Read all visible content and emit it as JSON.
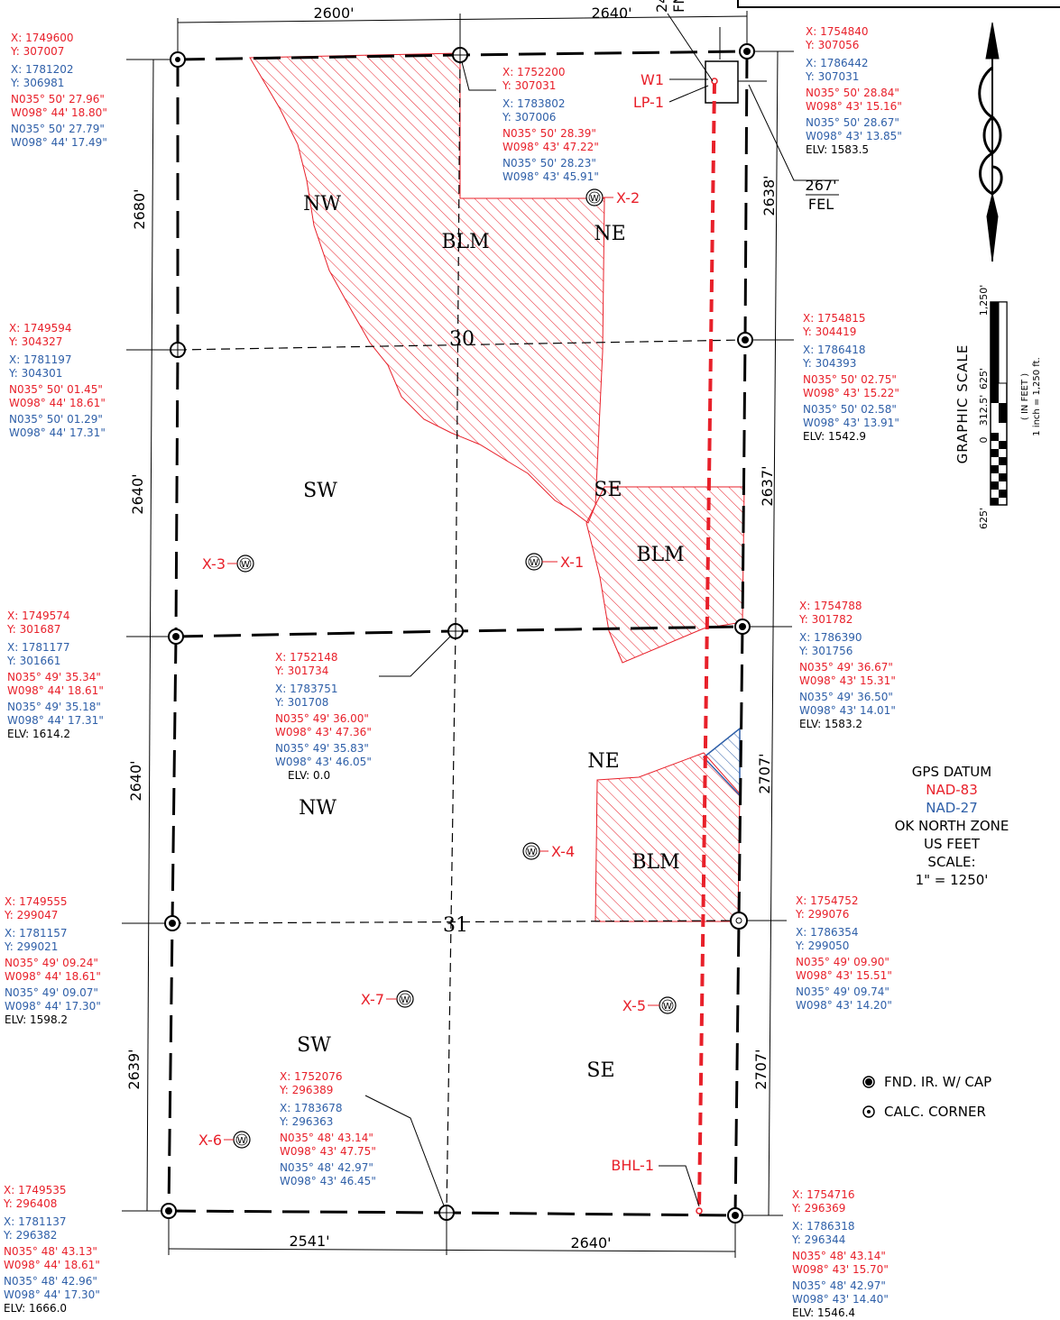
{
  "corners": {
    "nw_top": {
      "nad83_x": "X: 1749600",
      "nad83_y": "Y: 307007",
      "nad27_x": "X: 1781202",
      "nad27_y": "Y: 306981",
      "lat83": "N035° 50' 27.96\"",
      "lon83": "W098° 44' 18.80\"",
      "lat27": "N035° 50' 27.79\"",
      "lon27": "W098° 44' 17.49\""
    },
    "n_quarter": {
      "nad83_x": "X: 1752200",
      "nad83_y": "Y: 307031",
      "nad27_x": "X: 1783802",
      "nad27_y": "Y: 307006",
      "lat83": "N035° 50' 28.39\"",
      "lon83": "W098° 43' 47.22\"",
      "lat27": "N035° 50' 28.23\"",
      "lon27": "W098° 43' 45.91\""
    },
    "ne_top": {
      "nad83_x": "X: 1754840",
      "nad83_y": "Y: 307056",
      "nad27_x": "X: 1786442",
      "nad27_y": "Y: 307031",
      "lat83": "N035° 50' 28.84\"",
      "lon83": "W098° 43' 15.16\"",
      "lat27": "N035° 50' 28.67\"",
      "lon27": "W098° 43' 13.85\"",
      "elv": "ELV: 1583.5"
    },
    "w_quarter_30": {
      "nad83_x": "X: 1749594",
      "nad83_y": "Y: 304327",
      "nad27_x": "X: 1781197",
      "nad27_y": "Y: 304301",
      "lat83": "N035° 50' 01.45\"",
      "lon83": "W098° 44' 18.61\"",
      "lat27": "N035° 50' 01.29\"",
      "lon27": "W098° 44' 17.31\""
    },
    "e_quarter_30": {
      "nad83_x": "X: 1754815",
      "nad83_y": "Y: 304419",
      "nad27_x": "X: 1786418",
      "nad27_y": "Y: 304393",
      "lat83": "N035° 50' 02.75\"",
      "lon83": "W098° 43' 15.22\"",
      "lat27": "N035° 50' 02.58\"",
      "lon27": "W098° 43' 13.91\"",
      "elv": "ELV: 1542.9"
    },
    "w_section_line": {
      "nad83_x": "X: 1749574",
      "nad83_y": "Y: 301687",
      "nad27_x": "X: 1781177",
      "nad27_y": "Y: 301661",
      "lat83": "N035° 49' 35.34\"",
      "lon83": "W098° 44' 18.61\"",
      "lat27": "N035° 49' 35.18\"",
      "lon27": "W098° 44' 17.31\"",
      "elv": "ELV: 1614.2"
    },
    "center_section_line": {
      "nad83_x": "X: 1752148",
      "nad83_y": "Y: 301734",
      "nad27_x": "X: 1783751",
      "nad27_y": "Y: 301708",
      "lat83": "N035° 49' 36.00\"",
      "lon83": "W098° 43' 47.36\"",
      "lat27": "N035° 49' 35.83\"",
      "lon27": "W098° 43' 46.05\"",
      "elv": "ELV: 0.0"
    },
    "e_section_line": {
      "nad83_x": "X: 1754788",
      "nad83_y": "Y: 301782",
      "nad27_x": "X: 1786390",
      "nad27_y": "Y: 301756",
      "lat83": "N035° 49' 36.67\"",
      "lon83": "W098° 43' 15.31\"",
      "lat27": "N035° 49' 36.50\"",
      "lon27": "W098° 43' 14.01\"",
      "elv": "ELV: 1583.2"
    },
    "w_quarter_31": {
      "nad83_x": "X: 1749555",
      "nad83_y": "Y: 299047",
      "nad27_x": "X: 1781157",
      "nad27_y": "Y: 299021",
      "lat83": "N035° 49' 09.24\"",
      "lon83": "W098° 44' 18.61\"",
      "lat27": "N035° 49' 09.07\"",
      "lon27": "W098° 44' 17.30\"",
      "elv": "ELV: 1598.2"
    },
    "e_quarter_31": {
      "nad83_x": "X: 1754752",
      "nad83_y": "Y: 299076",
      "nad27_x": "X: 1786354",
      "nad27_y": "Y: 299050",
      "lat83": "N035° 49' 09.90\"",
      "lon83": "W098° 43' 15.51\"",
      "lat27": "N035° 49' 09.74\"",
      "lon27": "W098° 43' 14.20\""
    },
    "s_quarter": {
      "nad83_x": "X: 1752076",
      "nad83_y": "Y: 296389",
      "nad27_x": "X: 1783678",
      "nad27_y": "Y: 296363",
      "lat83": "N035° 48' 43.14\"",
      "lon83": "W098° 43' 47.75\"",
      "lat27": "N035° 48' 42.97\"",
      "lon27": "W098° 43' 46.45\""
    },
    "sw_bottom": {
      "nad83_x": "X: 1749535",
      "nad83_y": "Y: 296408",
      "nad27_x": "X: 1781137",
      "nad27_y": "Y: 296382",
      "lat83": "N035° 48' 43.13\"",
      "lon83": "W098° 44' 18.61\"",
      "lat27": "N035° 48' 42.96\"",
      "lon27": "W098° 44' 17.30\"",
      "elv": "ELV: 1666.0"
    },
    "se_bottom": {
      "nad83_x": "X: 1754716",
      "nad83_y": "Y: 296369",
      "nad27_x": "X: 1786318",
      "nad27_y": "Y: 296344",
      "lat83": "N035° 48' 43.14\"",
      "lon83": "W098° 43' 15.70\"",
      "lat27": "N035° 48' 42.97\"",
      "lon27": "W098° 43' 14.40\"",
      "elv": "ELV: 1546.4"
    }
  },
  "dimensions": {
    "top_west": "2600'",
    "top_east": "2640'",
    "bottom_west": "2541'",
    "bottom_east": "2640'",
    "west_1": "2680'",
    "west_2": "2640'",
    "west_3": "2640'",
    "west_4": "2639'",
    "east_1": "2638'",
    "east_2": "2637'",
    "east_3": "2707'",
    "east_4": "2707'",
    "fel": "267'",
    "fel_label": "FEL",
    "fnl_value": "24",
    "fnl_label": "FN"
  },
  "quarters": {
    "nw30": "NW",
    "ne30": "NE",
    "sw30": "SW",
    "se30": "SE",
    "ne31": "NE",
    "nw31": "NW",
    "sw31": "SW",
    "se31": "SE",
    "blm1": "BLM",
    "blm2": "BLM",
    "blm3": "BLM"
  },
  "sections": {
    "s30": "30",
    "s31": "31"
  },
  "wells": {
    "w1": "W1",
    "lp1": "LP-1",
    "bhl1": "BHL-1",
    "x1": "X-1",
    "x2": "X-2",
    "x3": "X-3",
    "x4": "X-4",
    "x5": "X-5",
    "x6": "X-6",
    "x7": "X-7",
    "marker": "W"
  },
  "scale": {
    "title": "GRAPHIC SCALE",
    "units": "( IN FEET )",
    "ratio": "1 inch = 1,250 ft.",
    "ticks": [
      "625'",
      "0",
      "312.5'",
      "625'",
      "1,250'"
    ]
  },
  "datum": {
    "title": "GPS DATUM",
    "nad83": "NAD-83",
    "nad27": "NAD-27",
    "zone": "OK NORTH ZONE",
    "units": "US FEET",
    "scale_label": "SCALE:",
    "scale_value": "1\" = 1250'"
  },
  "legend": {
    "found": "FND. IR. W/ CAP",
    "calc": "CALC. CORNER"
  },
  "colors": {
    "nad83": "#e8202a",
    "nad27": "#2e5fa8",
    "hatch": "#e8202a",
    "lateral": "#e8202a"
  }
}
